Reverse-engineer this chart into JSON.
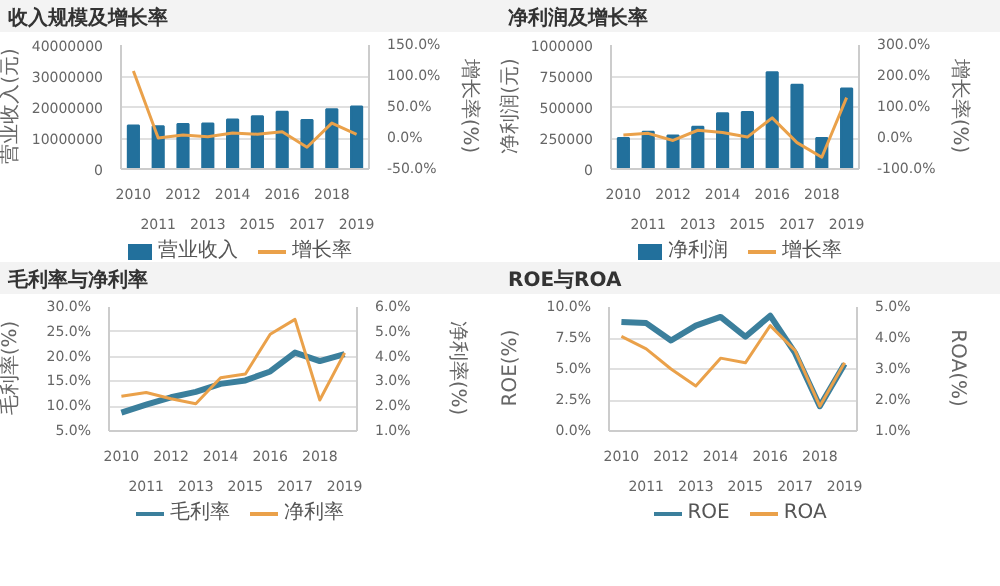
{
  "chart_data": [
    {
      "type": "bar",
      "title": "收入规模及增长率",
      "ylabel": "营业收入(元)",
      "y2label": "增长率(%)",
      "categories": [
        "2010",
        "2011",
        "2012",
        "2013",
        "2014",
        "2015",
        "2016",
        "2017",
        "2018",
        "2019"
      ],
      "series": [
        {
          "name": "营业收入",
          "color": "#22709c",
          "values": [
            14000000,
            13800000,
            14500000,
            14700000,
            16000000,
            17000000,
            18500000,
            15800000,
            19300000,
            20200000
          ]
        },
        {
          "name": "增长率",
          "type": "line",
          "axis": "y2",
          "color": "#eaa14a",
          "values": [
            108,
            0,
            5,
            2,
            8,
            6,
            10,
            -15,
            24,
            6
          ]
        }
      ],
      "ylim": [
        0,
        40000000
      ],
      "yticks": [
        0,
        10000000,
        20000000,
        30000000,
        40000000
      ],
      "y2lim": [
        -50,
        150
      ],
      "y2ticks": [
        {
          "value": -50,
          "label": "-50.0%"
        },
        {
          "value": 0,
          "label": "0.0%"
        },
        {
          "value": 50,
          "label": "50.0%"
        },
        {
          "value": 100,
          "label": "100.0%"
        },
        {
          "value": 150,
          "label": "150.0%"
        }
      ],
      "grid": "y",
      "legend": "bottom"
    },
    {
      "type": "bar",
      "title": "净利润及增长率",
      "ylabel": "净利润(元)",
      "y2label": "增长率(%)",
      "categories": [
        "2010",
        "2011",
        "2012",
        "2013",
        "2014",
        "2015",
        "2016",
        "2017",
        "2018",
        "2019"
      ],
      "series": [
        {
          "name": "净利润",
          "color": "#22709c",
          "values": [
            250000,
            300000,
            270000,
            340000,
            450000,
            460000,
            780000,
            680000,
            250000,
            650000
          ]
        },
        {
          "name": "增长率",
          "type": "line",
          "axis": "y2",
          "color": "#eaa14a",
          "values": [
            10,
            15,
            -8,
            25,
            18,
            3,
            65,
            -15,
            -62,
            130
          ]
        }
      ],
      "ylim": [
        0,
        1000000
      ],
      "yticks": [
        0,
        250000,
        500000,
        750000,
        1000000
      ],
      "y2lim": [
        -100,
        300
      ],
      "y2ticks": [
        {
          "value": -100,
          "label": "-100.0%"
        },
        {
          "value": 0,
          "label": "0.0%"
        },
        {
          "value": 100,
          "label": "100.0%"
        },
        {
          "value": 200,
          "label": "200.0%"
        },
        {
          "value": 300,
          "label": "300.0%"
        }
      ],
      "grid": "y",
      "legend": "bottom"
    },
    {
      "type": "line",
      "title": "毛利率与净利率",
      "ylabel": "毛利率(%)",
      "y2label": "净利率(%)",
      "categories": [
        "2010",
        "2011",
        "2012",
        "2013",
        "2014",
        "2015",
        "2016",
        "2017",
        "2018",
        "2019"
      ],
      "series": [
        {
          "name": "毛利率",
          "color": "#3b7f9c",
          "values": [
            8.7,
            10.3,
            11.8,
            12.9,
            14.5,
            15.2,
            17,
            20.8,
            19.1,
            20.5
          ]
        },
        {
          "name": "净利率",
          "axis": "y2",
          "color": "#eaa14a",
          "values": [
            2.4,
            2.55,
            2.3,
            2.1,
            3.15,
            3.3,
            4.9,
            5.5,
            2.25,
            4.15
          ]
        }
      ],
      "ylim": [
        5,
        30
      ],
      "yticks": [
        {
          "value": 5,
          "label": "5.0%"
        },
        {
          "value": 10,
          "label": "10.0%"
        },
        {
          "value": 15,
          "label": "15.0%"
        },
        {
          "value": 20,
          "label": "20.0%"
        },
        {
          "value": 25,
          "label": "25.0%"
        },
        {
          "value": 30,
          "label": "30.0%"
        }
      ],
      "y2lim": [
        1,
        6
      ],
      "y2ticks": [
        {
          "value": 1,
          "label": "1.0%"
        },
        {
          "value": 2,
          "label": "2.0%"
        },
        {
          "value": 3,
          "label": "3.0%"
        },
        {
          "value": 4,
          "label": "4.0%"
        },
        {
          "value": 5,
          "label": "5.0%"
        },
        {
          "value": 6,
          "label": "6.0%"
        }
      ],
      "grid": "y",
      "legend": "bottom"
    },
    {
      "type": "line",
      "title": "ROE与ROA",
      "ylabel": "ROE(%)",
      "y2label": "ROA(%)",
      "categories": [
        "2010",
        "2011",
        "2012",
        "2013",
        "2014",
        "2015",
        "2016",
        "2017",
        "2018",
        "2019"
      ],
      "series": [
        {
          "name": "ROE",
          "color": "#3b7f9c",
          "values": [
            8.8,
            8.7,
            7.3,
            8.5,
            9.2,
            7.6,
            9.3,
            6.3,
            2.0,
            5.4
          ]
        },
        {
          "name": "ROA",
          "axis": "y2",
          "color": "#eaa14a",
          "values": [
            4.05,
            3.65,
            3.0,
            2.45,
            3.35,
            3.2,
            4.4,
            3.6,
            1.8,
            3.2
          ]
        }
      ],
      "ylim": [
        0,
        10
      ],
      "yticks": [
        {
          "value": 0,
          "label": "0.0%"
        },
        {
          "value": 2.5,
          "label": "2.5%"
        },
        {
          "value": 5,
          "label": "5.0%"
        },
        {
          "value": 7.5,
          "label": "7.5%"
        },
        {
          "value": 10,
          "label": "10.0%"
        }
      ],
      "y2lim": [
        1,
        5
      ],
      "y2ticks": [
        {
          "value": 1,
          "label": "1.0%"
        },
        {
          "value": 2,
          "label": "2.0%"
        },
        {
          "value": 3,
          "label": "3.0%"
        },
        {
          "value": 4,
          "label": "4.0%"
        },
        {
          "value": 5,
          "label": "5.0%"
        }
      ],
      "grid": "y",
      "legend": "bottom"
    }
  ]
}
